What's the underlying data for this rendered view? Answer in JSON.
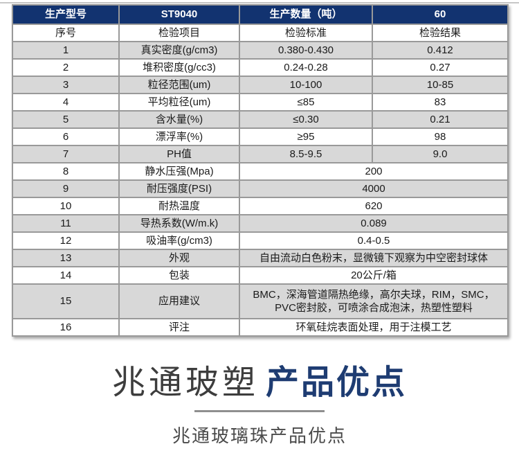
{
  "colors": {
    "header_bg": "#123370",
    "row_alt_bg": "#d8d8d8",
    "row_bg": "#ffffff",
    "border": "#999999",
    "accent_navy": "#1e3c72",
    "top_line": "#c6c6c6"
  },
  "table": {
    "header": {
      "label": "生产型号",
      "model": "ST9040",
      "qty_label": "生产数量（吨）",
      "qty_value": "60"
    },
    "subheader": {
      "no": "序号",
      "item": "检验项目",
      "standard": "检验标准",
      "result": "检验结果"
    },
    "rows": [
      {
        "no": "1",
        "item": "真实密度(g/cm3)",
        "standard": "0.380-0.430",
        "result": "0.412",
        "merged": false
      },
      {
        "no": "2",
        "item": "堆积密度(g/cc3)",
        "standard": "0.24-0.28",
        "result": "0.27",
        "merged": false
      },
      {
        "no": "3",
        "item": "粒径范围(um)",
        "standard": "10-100",
        "result": "10-85",
        "merged": false
      },
      {
        "no": "4",
        "item": "平均粒径(um)",
        "standard": "≤85",
        "result": "83",
        "merged": false
      },
      {
        "no": "5",
        "item": "含水量(%)",
        "standard": "≤0.30",
        "result": "0.21",
        "merged": false
      },
      {
        "no": "6",
        "item": "漂浮率(%)",
        "standard": "≥95",
        "result": "98",
        "merged": false
      },
      {
        "no": "7",
        "item": "PH值",
        "standard": "8.5-9.5",
        "result": "9.0",
        "merged": false
      },
      {
        "no": "8",
        "item": "静水压强(Mpa)",
        "value": "200",
        "merged": true
      },
      {
        "no": "9",
        "item": "耐压强度(PSI)",
        "value": "4000",
        "merged": true
      },
      {
        "no": "10",
        "item": "耐热温度",
        "value": "620",
        "merged": true
      },
      {
        "no": "11",
        "item": "导热系数(W/m.k)",
        "value": "0.089",
        "merged": true
      },
      {
        "no": "12",
        "item": "吸油率(g/cm3)",
        "value": "0.4-0.5",
        "merged": true
      },
      {
        "no": "13",
        "item": "外观",
        "value": "自由流动白色粉末，显微镜下观察为中空密封球体",
        "merged": true
      },
      {
        "no": "14",
        "item": "包装",
        "value": "20公斤/箱",
        "merged": true
      },
      {
        "no": "15",
        "item": "应用建议",
        "value": "BMC，深海管道隔热绝缘，高尔夫球，RIM，SMC，PVC密封胶，可喷涂合成泡沫，热塑性塑料",
        "merged": true,
        "tall": true
      },
      {
        "no": "16",
        "item": "评注",
        "value": "环氧硅烷表面处理，用于注模工艺",
        "merged": true
      }
    ]
  },
  "footer": {
    "brand": "兆通玻塑",
    "title": "产品优点",
    "subtitle": "兆通玻璃珠产品优点"
  }
}
